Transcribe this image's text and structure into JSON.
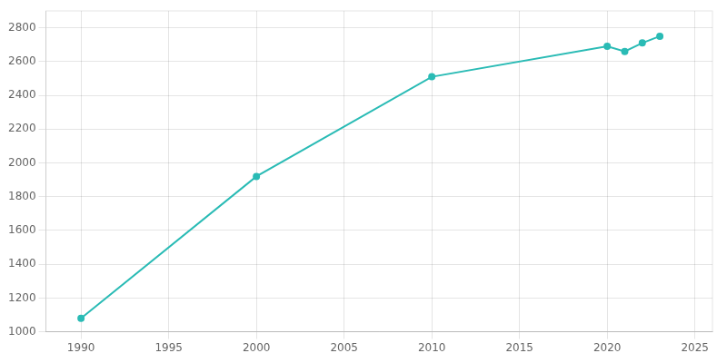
{
  "chart_data": {
    "type": "line",
    "x": [
      1990,
      2000,
      2010,
      2020,
      2021,
      2022,
      2023
    ],
    "values": [
      1080,
      1920,
      2510,
      2690,
      2660,
      2710,
      2750
    ],
    "color": "#2abbb5",
    "marker": "circle",
    "xlim": [
      1988,
      2026
    ],
    "xticks": [
      1990,
      1995,
      2000,
      2005,
      2010,
      2015,
      2020,
      2025
    ],
    "ylim": [
      1000,
      2900
    ],
    "yticks": [
      1000,
      1200,
      1400,
      1600,
      1800,
      2000,
      2200,
      2400,
      2600,
      2800
    ],
    "grid": true
  }
}
